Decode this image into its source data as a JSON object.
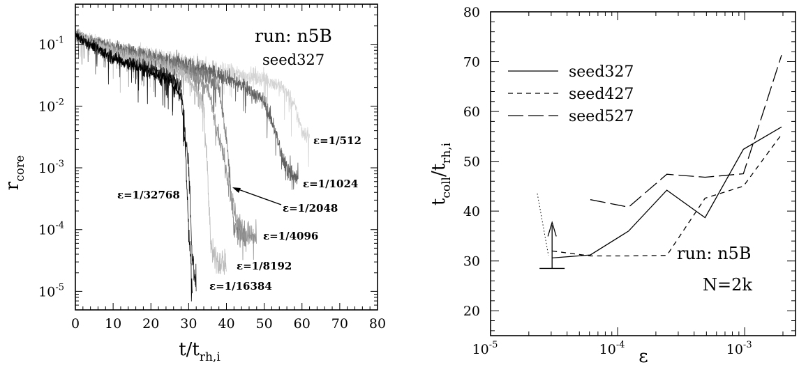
{
  "chart_data": [
    {
      "type": "line",
      "yscale": "log",
      "xlabel": "t/t",
      "xlabel_sub": "rh,i",
      "ylabel": "r",
      "ylabel_sub": "core",
      "xlim": [
        0,
        80
      ],
      "ylim_exp": [
        -5.3,
        -0.35
      ],
      "xticks": [
        "0",
        "10",
        "20",
        "30",
        "40",
        "50",
        "60",
        "70",
        "80"
      ],
      "yticks": [
        {
          "base": "10",
          "exp": "-1"
        },
        {
          "base": "10",
          "exp": "-2"
        },
        {
          "base": "10",
          "exp": "-3"
        },
        {
          "base": "10",
          "exp": "-4"
        },
        {
          "base": "10",
          "exp": "-5"
        }
      ],
      "annotations": [
        "run: n5B",
        "seed327"
      ],
      "series": [
        {
          "name": "ε=1/512",
          "color": "#d4d4d4",
          "x": [
            0,
            10,
            20,
            30,
            40,
            50,
            55,
            58,
            60,
            62
          ],
          "y": [
            0.14,
            0.09,
            0.07,
            0.05,
            0.035,
            0.028,
            0.02,
            0.01,
            0.004,
            0.0032
          ]
        },
        {
          "name": "ε=1/1024",
          "color": "#606060",
          "x": [
            0,
            10,
            20,
            30,
            40,
            45,
            50,
            53,
            55,
            57,
            59
          ],
          "y": [
            0.14,
            0.09,
            0.065,
            0.045,
            0.03,
            0.02,
            0.012,
            0.004,
            0.0012,
            0.0009,
            0.0007
          ]
        },
        {
          "name": "ε=1/2048",
          "color": "#787878",
          "x": [
            0,
            10,
            20,
            30,
            35,
            38,
            40,
            42,
            45
          ],
          "y": [
            0.14,
            0.08,
            0.06,
            0.04,
            0.03,
            0.02,
            0.003,
            0.00012,
            8e-05
          ]
        },
        {
          "name": "ε=1/4096",
          "color": "#929292",
          "x": [
            0,
            10,
            20,
            30,
            35,
            40,
            42,
            44,
            46,
            48
          ],
          "y": [
            0.14,
            0.08,
            0.055,
            0.035,
            0.02,
            0.001,
            0.0002,
            9e-05,
            8e-05,
            7e-05
          ]
        },
        {
          "name": "ε=1/8192",
          "color": "#bababa",
          "x": [
            0,
            10,
            20,
            25,
            30,
            34,
            35,
            36,
            38,
            40
          ],
          "y": [
            0.14,
            0.075,
            0.05,
            0.04,
            0.03,
            0.01,
            0.0008,
            4e-05,
            3e-05,
            3e-05
          ]
        },
        {
          "name": "ε=1/16384",
          "color": "#1c1c1c",
          "x": [
            0,
            10,
            20,
            25,
            28,
            30,
            31,
            32
          ],
          "y": [
            0.14,
            0.06,
            0.04,
            0.03,
            0.02,
            0.001,
            3e-05,
            1.5e-05
          ]
        },
        {
          "name": "ε=1/32768",
          "color": "#000000",
          "x": [
            0,
            10,
            20,
            25,
            28,
            29,
            30,
            31
          ],
          "y": [
            0.14,
            0.06,
            0.035,
            0.025,
            0.015,
            0.003,
            0.0001,
            1.2e-05
          ]
        }
      ]
    },
    {
      "type": "line",
      "xscale": "log",
      "xlabel": "ε",
      "ylabel": "t",
      "ylabel_sub1": "coll",
      "ylabel_sub2": "rh,i",
      "xlim_exp": [
        -5,
        -2.6
      ],
      "ylim": [
        15,
        80
      ],
      "xticks": [
        {
          "base": "10",
          "exp": "-5"
        },
        {
          "base": "10",
          "exp": "-4"
        },
        {
          "base": "10",
          "exp": "-3"
        }
      ],
      "yticks": [
        "20",
        "30",
        "40",
        "50",
        "60",
        "70",
        "80"
      ],
      "annotations": [
        "run: n5B",
        "N=2k"
      ],
      "series": [
        {
          "name": "seed327",
          "dash": "solid",
          "x": [
            3.05e-05,
            6.1e-05,
            0.000122,
            0.000244,
            0.000488,
            0.000977,
            0.00195
          ],
          "y": [
            30.6,
            31.2,
            36.0,
            44.2,
            38.7,
            52.4,
            56.9
          ]
        },
        {
          "name": "seed427",
          "dash": "short-dash",
          "x": [
            3.05e-05,
            6.1e-05,
            0.000122,
            0.000244,
            0.000488,
            0.000977,
            0.00195
          ],
          "y": [
            32.0,
            31.0,
            31.0,
            31.1,
            42.6,
            45.0,
            55.4
          ]
        },
        {
          "name": "seed527",
          "dash": "long-dash",
          "x": [
            6.1e-05,
            0.000122,
            0.000244,
            0.000488,
            0.000977,
            0.00195
          ],
          "y": [
            42.3,
            40.8,
            47.4,
            46.8,
            47.5,
            71.3
          ]
        }
      ],
      "lower_limit": {
        "x": 3.05e-05,
        "y": 28.5
      }
    }
  ]
}
